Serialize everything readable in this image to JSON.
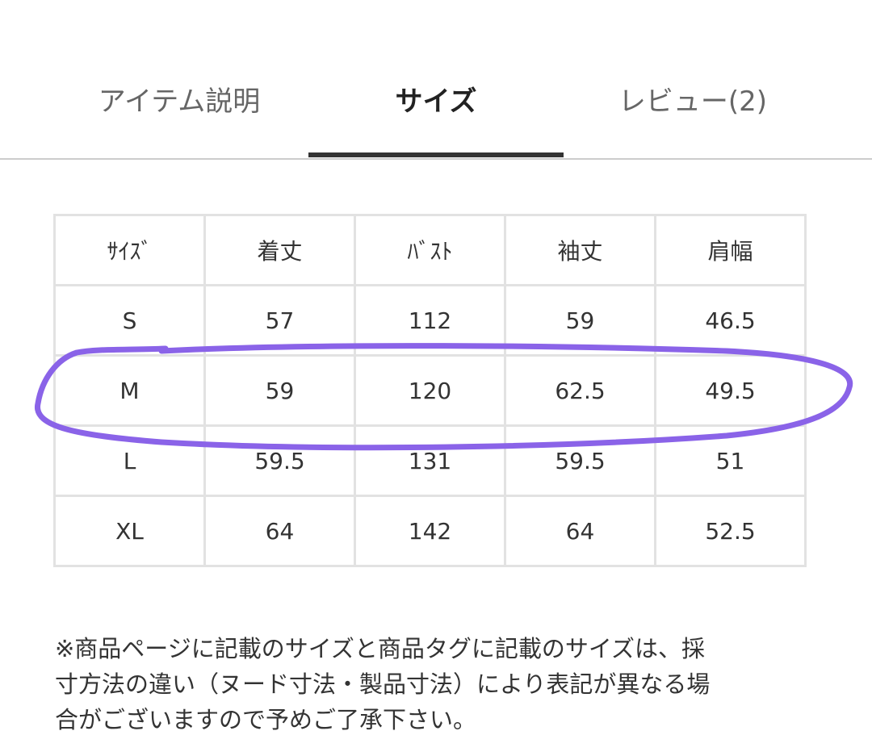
{
  "tabs": [
    "アイテム説明",
    "サイズ",
    "レビュー(2)"
  ],
  "table": {
    "header": [
      "ｻｲｽﾞ",
      "着丈",
      "ﾊﾞｽﾄ",
      "袖丈",
      "肩幅"
    ],
    "rows": [
      [
        "S",
        "57",
        "112",
        "59",
        "46.5"
      ],
      [
        "M",
        "59",
        "120",
        "62.5",
        "49.5"
      ],
      [
        "L",
        "59.5",
        "131",
        "59.5",
        "51"
      ],
      [
        "XL",
        "64",
        "142",
        "64",
        "52.5"
      ]
    ]
  },
  "note": [
    "※商品ページに記載のサイズと商品タグに記載のサイズは、採",
    "寸方法の違い（ヌード寸法・製品寸法）により表記が異なる場",
    "合がございますので予めご了承下さい。"
  ]
}
